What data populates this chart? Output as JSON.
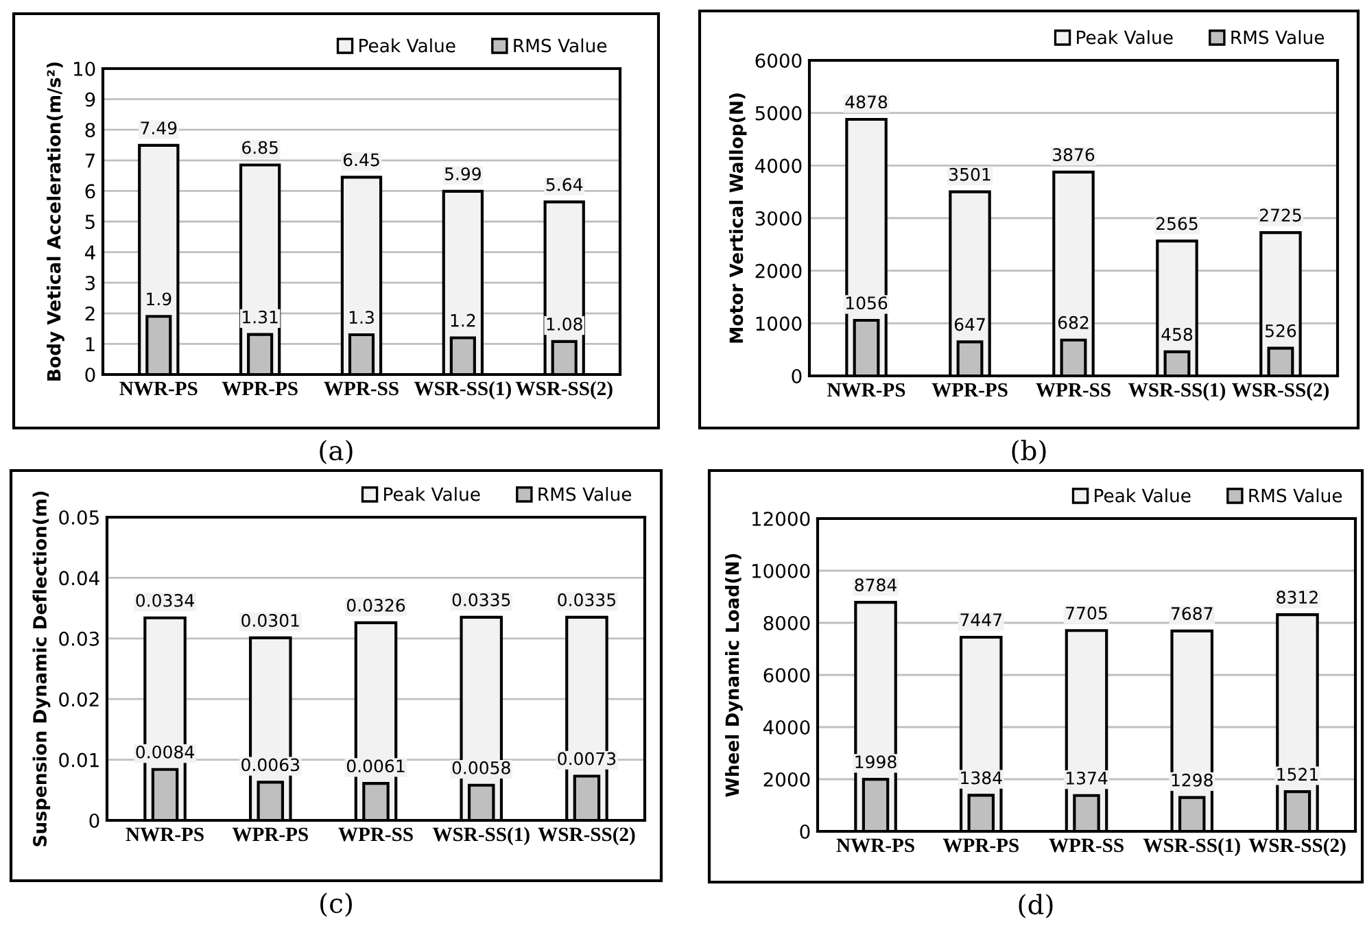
{
  "chart_data": [
    {
      "type": "bar",
      "ylabel": "Body Vetical Acceleration(m/s²)",
      "annotations": [
        "(a)"
      ],
      "categories": [
        "NWR-PS",
        "WPR-PS",
        "WPR-SS",
        "WSR-SS(1)",
        "WSR-SS(2)"
      ],
      "series": [
        {
          "name": "Peak Value",
          "color": "#f2f2f2",
          "values": [
            7.49,
            6.85,
            6.45,
            5.99,
            5.64
          ]
        },
        {
          "name": "RMS Value",
          "color": "#bfbfbf",
          "values": [
            1.9,
            1.31,
            1.3,
            1.2,
            1.08
          ]
        }
      ],
      "ylim": [
        0,
        10
      ],
      "yticks": [
        0,
        1,
        2,
        3,
        4,
        5,
        6,
        7,
        8,
        9,
        10
      ],
      "grid": "y",
      "legend": "top right",
      "data_labels": true
    },
    {
      "type": "bar",
      "ylabel": "Motor Vertical Wallop(N)",
      "annotations": [
        "(b)"
      ],
      "categories": [
        "NWR-PS",
        "WPR-PS",
        "WPR-SS",
        "WSR-SS(1)",
        "WSR-SS(2)"
      ],
      "series": [
        {
          "name": "Peak Value",
          "color": "#f2f2f2",
          "values": [
            4878,
            3501,
            3876,
            2565,
            2725
          ]
        },
        {
          "name": "RMS Value",
          "color": "#bfbfbf",
          "values": [
            1056,
            647,
            682,
            458,
            526
          ]
        }
      ],
      "ylim": [
        0,
        6000
      ],
      "yticks": [
        0,
        1000,
        2000,
        3000,
        4000,
        5000,
        6000
      ],
      "grid": "y",
      "legend": "top right",
      "data_labels": true
    },
    {
      "type": "bar",
      "ylabel": "Suspension Dynamic Deflection(m)",
      "annotations": [
        "(c)"
      ],
      "categories": [
        "NWR-PS",
        "WPR-PS",
        "WPR-SS",
        "WSR-SS(1)",
        "WSR-SS(2)"
      ],
      "series": [
        {
          "name": "Peak Value",
          "color": "#f2f2f2",
          "values": [
            0.0334,
            0.0301,
            0.0326,
            0.0335,
            0.0335
          ]
        },
        {
          "name": "RMS Value",
          "color": "#bfbfbf",
          "values": [
            0.0084,
            0.0063,
            0.0061,
            0.0058,
            0.0073
          ]
        }
      ],
      "ylim": [
        0,
        0.05
      ],
      "yticks": [
        0,
        0.01,
        0.02,
        0.03,
        0.04,
        0.05
      ],
      "grid": "y",
      "legend": "top right",
      "data_labels": true
    },
    {
      "type": "bar",
      "ylabel": "Wheel Dynamic Load(N)",
      "annotations": [
        "(d)"
      ],
      "categories": [
        "NWR-PS",
        "WPR-PS",
        "WPR-SS",
        "WSR-SS(1)",
        "WSR-SS(2)"
      ],
      "series": [
        {
          "name": "Peak Value",
          "color": "#f2f2f2",
          "values": [
            8784,
            7447,
            7705,
            7687,
            8312
          ]
        },
        {
          "name": "RMS Value",
          "color": "#bfbfbf",
          "values": [
            1998,
            1384,
            1374,
            1298,
            1521
          ]
        }
      ],
      "ylim": [
        0,
        12000
      ],
      "yticks": [
        0,
        2000,
        4000,
        6000,
        8000,
        10000,
        12000
      ],
      "grid": "y",
      "legend": "top right",
      "data_labels": true
    }
  ]
}
